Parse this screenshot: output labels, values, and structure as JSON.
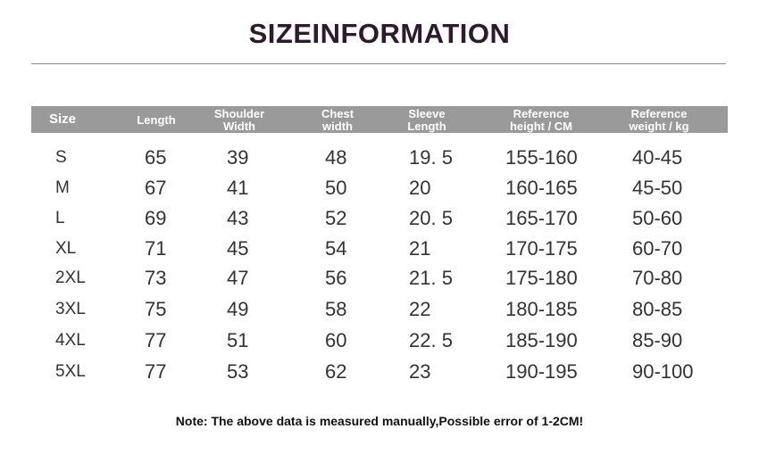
{
  "header": {
    "title": "SIZEINFORMATION"
  },
  "table": {
    "columns": [
      [
        "Size"
      ],
      [
        "Length"
      ],
      [
        "Shoulder",
        "Width"
      ],
      [
        "Chest",
        "width"
      ],
      [
        "Sleeve",
        "Length"
      ],
      [
        "Reference",
        "height / CM"
      ],
      [
        "Reference",
        "weight / kg"
      ]
    ],
    "rows": [
      [
        "S",
        "65",
        "39",
        "48",
        "19. 5",
        "155-160",
        "40-45"
      ],
      [
        "M",
        "67",
        "41",
        "50",
        "20",
        "160-165",
        "45-50"
      ],
      [
        "L",
        "69",
        "43",
        "52",
        "20. 5",
        "165-170",
        "50-60"
      ],
      [
        "XL",
        "71",
        "45",
        "54",
        "21",
        "170-175",
        "60-70"
      ],
      [
        "2XL",
        "73",
        "47",
        "56",
        "21. 5",
        "175-180",
        "70-80"
      ],
      [
        "3XL",
        "75",
        "49",
        "58",
        "22",
        "180-185",
        "80-85"
      ],
      [
        "4XL",
        "77",
        "51",
        "60",
        "22. 5",
        "185-190",
        "85-90"
      ],
      [
        "5XL",
        "77",
        "53",
        "62",
        "23",
        "190-195",
        "90-100"
      ]
    ]
  },
  "note": "Note: The above data is measured manually,Possible error of 1-2CM!"
}
